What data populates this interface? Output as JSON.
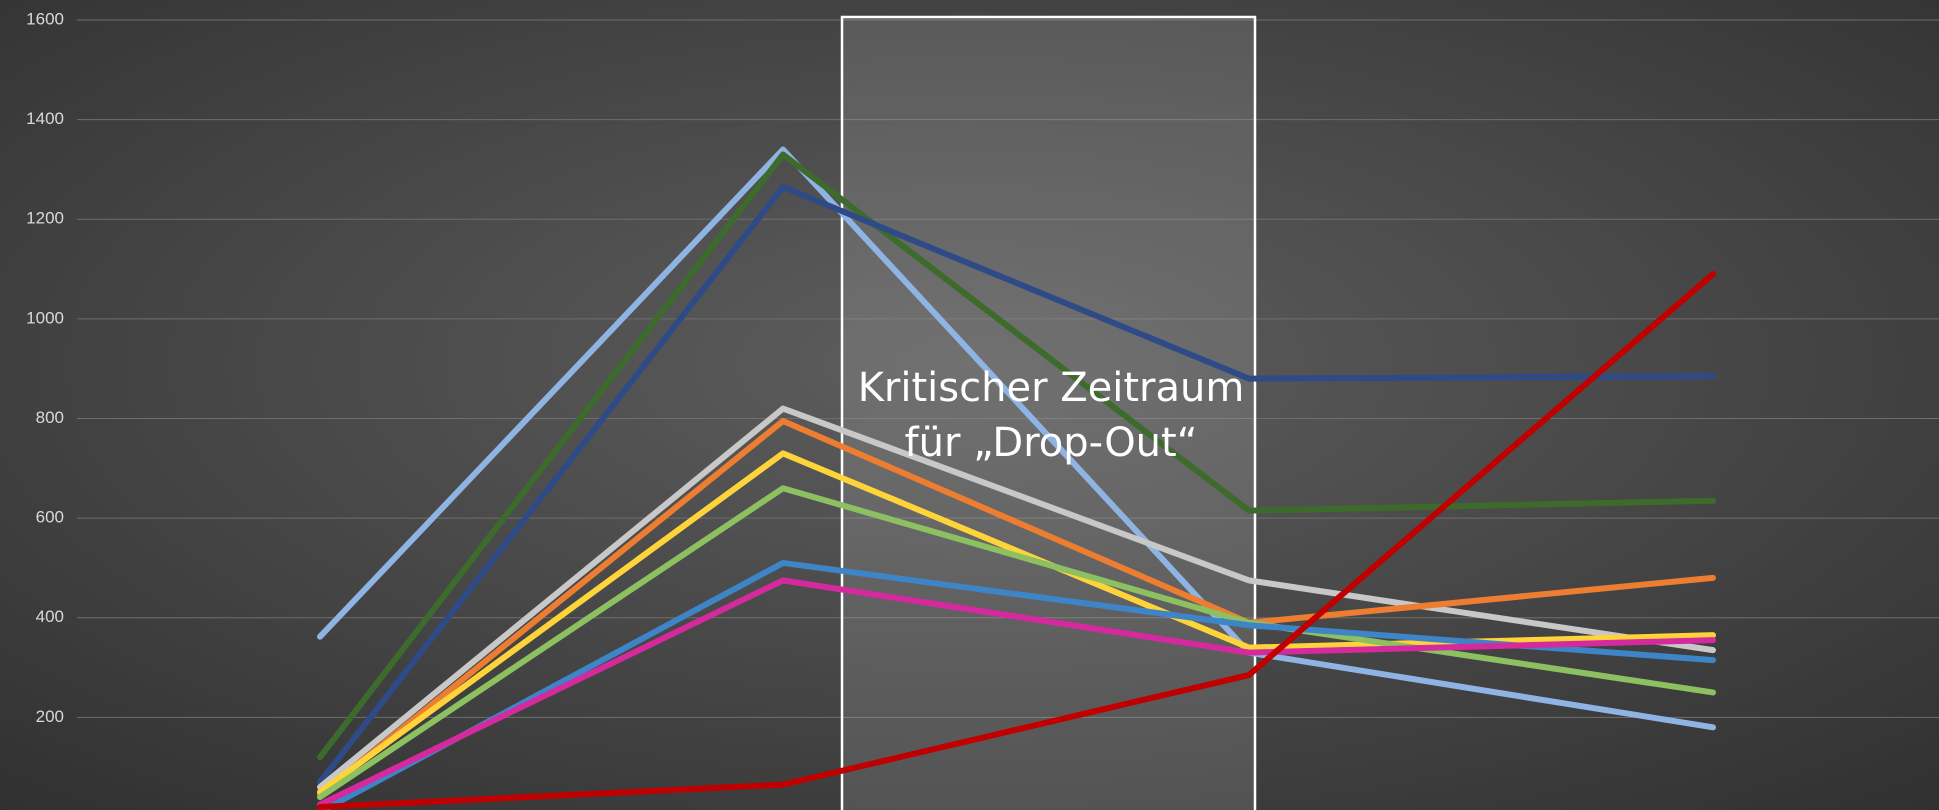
{
  "chart_data": {
    "type": "line",
    "categories": [
      null,
      null,
      null,
      null
    ],
    "series": [
      {
        "color": "#8fb4e3",
        "values": [
          362,
          1340,
          330,
          180
        ]
      },
      {
        "color": "#3d6b2c",
        "values": [
          120,
          1330,
          615,
          635
        ]
      },
      {
        "color": "#2f4b87",
        "values": [
          70,
          1265,
          880,
          885
        ]
      },
      {
        "color": "#c8c8c8",
        "values": [
          60,
          820,
          475,
          335
        ]
      },
      {
        "color": "#ed7d31",
        "values": [
          45,
          795,
          390,
          480
        ]
      },
      {
        "color": "#ffd43b",
        "values": [
          50,
          730,
          340,
          365
        ]
      },
      {
        "color": "#8dc060",
        "values": [
          40,
          660,
          390,
          250
        ]
      },
      {
        "color": "#3d85c6",
        "values": [
          10,
          510,
          385,
          315
        ]
      },
      {
        "color": "#d42a9e",
        "values": [
          25,
          475,
          330,
          355
        ]
      },
      {
        "color": "#c00000",
        "values": [
          20,
          65,
          285,
          1090
        ]
      }
    ],
    "ylim": [
      0,
      1600
    ],
    "yticks": [
      0,
      200,
      400,
      600,
      800,
      1000,
      1200,
      1400,
      1600
    ],
    "grid": true,
    "annotation": [
      "Kritischer Zeitraum",
      "für „Drop-Out“"
    ]
  }
}
